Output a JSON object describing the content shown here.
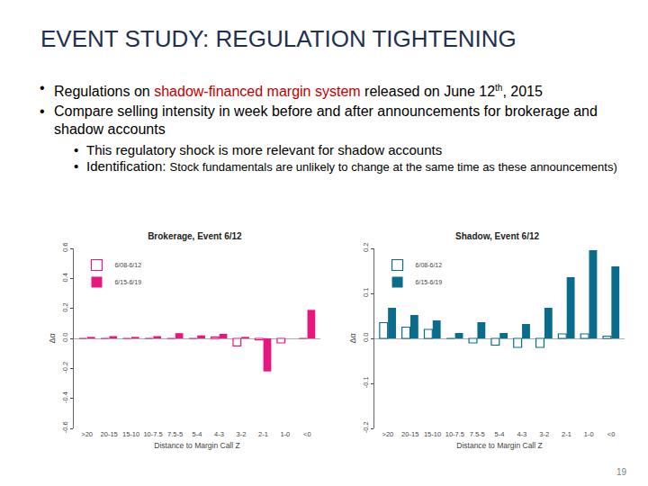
{
  "slide": {
    "title": "EVENT STUDY: REGULATION TIGHTENING",
    "bullets": [
      {
        "parts": [
          {
            "text": "Regulations on "
          },
          {
            "text": "shadow-financed margin system",
            "color": "#c00000"
          },
          {
            "text": " released on June 12"
          },
          {
            "text": "th",
            "style": "superscript"
          },
          {
            "text": ", 2015"
          }
        ]
      },
      {
        "parts": [
          {
            "text": "Compare selling intensity in week before and after announcements for brokerage and shadow accounts"
          }
        ],
        "sub_bullets": [
          {
            "parts": [
              {
                "text": "This regulatory shock is more relevant for shadow accounts"
              }
            ]
          },
          {
            "parts": [
              {
                "text": "Identification: "
              },
              {
                "text": "Stock fundamentals are unlikely to change at the same time as these announcements)",
                "style": "small"
              }
            ]
          }
        ]
      }
    ],
    "page_number": "19"
  },
  "chart_data": [
    {
      "type": "bar",
      "title": "Brokerage, Event 6/12",
      "x_label": "Distance to Margin Call Z",
      "y_label": "Δα",
      "categories": [
        ">20",
        "20-15",
        "15-10",
        "10-7.5",
        "7.5-5",
        "5-4",
        "4-3",
        "3-2",
        "2-1",
        "1-0",
        "<0"
      ],
      "series": [
        {
          "name": "6/08-6/12",
          "color": "#e8177f",
          "marker": "outline",
          "values": [
            0.0,
            0.0,
            0.0,
            0.0,
            0.0,
            0.0,
            0.01,
            -0.05,
            -0.01,
            -0.03,
            0.0
          ]
        },
        {
          "name": "6/15-6/19",
          "color": "#e8177f",
          "marker": "solid",
          "values": [
            0.01,
            0.015,
            0.01,
            0.015,
            0.035,
            0.02,
            0.03,
            0.01,
            -0.22,
            0.0,
            0.19
          ]
        }
      ],
      "ylim": [
        -0.6,
        0.6
      ],
      "yticks": [
        -0.6,
        -0.4,
        -0.2,
        {
          "value": 0,
          "label": "0.0"
        },
        0.2,
        0.4,
        0.6
      ],
      "legend": "top-left",
      "grid": false
    },
    {
      "type": "bar",
      "title": "Shadow, Event 6/12",
      "x_label": "Distance to Margin Call Z",
      "y_label": "Δα",
      "categories": [
        ">20",
        "20-15",
        "15-10",
        "10-7.5",
        "7.5-5",
        "5-4",
        "4-3",
        "3-2",
        "2-1",
        "1-0",
        "<0"
      ],
      "series": [
        {
          "name": "6/08-6/12",
          "color": "#0a6c8c",
          "marker": "outline",
          "values": [
            0.035,
            0.025,
            0.02,
            0.0,
            -0.01,
            -0.015,
            -0.02,
            -0.02,
            0.01,
            0.01,
            0.005
          ]
        },
        {
          "name": "6/15-6/19",
          "color": "#0a6c8c",
          "marker": "solid",
          "values": [
            0.068,
            0.052,
            0.04,
            0.012,
            0.036,
            0.012,
            0.032,
            0.068,
            0.136,
            0.196,
            0.16
          ]
        }
      ],
      "ylim": [
        -0.2,
        0.2
      ],
      "yticks": [
        -0.2,
        -0.1,
        {
          "value": 0,
          "label": "0.0"
        },
        0.1,
        0.2
      ],
      "legend": "top-left",
      "grid": false
    }
  ]
}
